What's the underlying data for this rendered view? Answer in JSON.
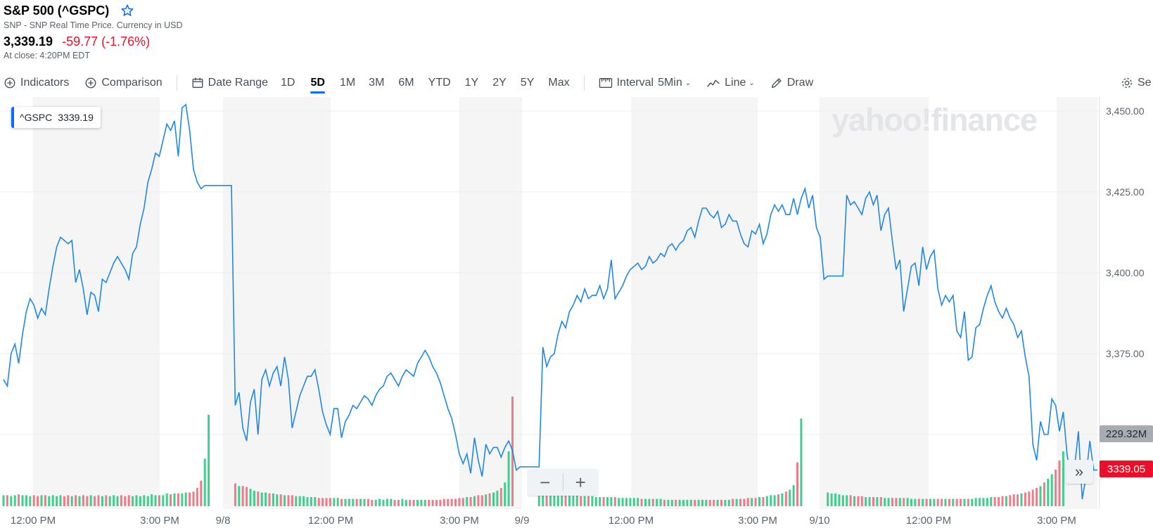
{
  "header": {
    "title": "S&P 500 (^GSPC)",
    "subtitle": "SNP - SNP Real Time Price. Currency in USD",
    "price": "3,339.19",
    "change": "-59.77 (-1.76%)",
    "close_time": "At close: 4:20PM EDT"
  },
  "toolbar": {
    "indicators": "Indicators",
    "comparison": "Comparison",
    "date_range": "Date Range",
    "ranges": [
      "1D",
      "5D",
      "1M",
      "3M",
      "6M",
      "YTD",
      "1Y",
      "2Y",
      "5Y",
      "Max"
    ],
    "active_range": "5D",
    "interval_label": "Interval",
    "interval_value": "5Min",
    "chart_type": "Line",
    "draw": "Draw",
    "settings_partial": "Se"
  },
  "legend": {
    "symbol": "^GSPC",
    "value": "3339.19"
  },
  "watermark": "yahoo!finance",
  "price_axis": [
    "3,450.00",
    "3,425.00",
    "3,400.00",
    "3,375.00"
  ],
  "volume_label": "229.32M",
  "last_price_label": "3339.05",
  "x_axis": [
    "12:00 PM",
    "3:00 PM",
    "9/8",
    "12:00 PM",
    "3:00 PM",
    "9/9",
    "12:00 PM",
    "3:00 PM",
    "9/10",
    "12:00 PM",
    "3:00 PM"
  ],
  "colors": {
    "line": "#1e88e5",
    "up_volume": "#3ecf8e",
    "down_volume": "#f07a88",
    "negative": "#eb0f29",
    "accent": "#0f69ff"
  },
  "chart_data": {
    "type": "line",
    "series": [
      {
        "name": "^GSPC",
        "values": [
          3367,
          3365,
          3375,
          3378,
          3372,
          3381,
          3388,
          3392,
          3390,
          3386,
          3389,
          3387,
          3395,
          3402,
          3408,
          3411,
          3410,
          3409,
          3410,
          3397,
          3401,
          3395,
          3387,
          3394,
          3393,
          3388,
          3398,
          3397,
          3400,
          3403,
          3405,
          3403,
          3401,
          3398,
          3406,
          3408,
          3415,
          3420,
          3428,
          3432,
          3437,
          3436,
          3441,
          3446,
          3444,
          3447,
          3436,
          3451,
          3452,
          3444,
          3432,
          3428,
          3426,
          3427,
          3427,
          3427,
          3427,
          3427,
          3427,
          3427,
          3427,
          3359,
          3363,
          3352,
          3348,
          3360,
          3364,
          3350,
          3367,
          3370,
          3365,
          3369,
          3371,
          3365,
          3374,
          3367,
          3352,
          3357,
          3362,
          3365,
          3368,
          3368,
          3370,
          3364,
          3357,
          3353,
          3350,
          3358,
          3358,
          3349,
          3354,
          3356,
          3359,
          3358,
          3360,
          3362,
          3361,
          3359,
          3362,
          3364,
          3365,
          3368,
          3369,
          3367,
          3365,
          3368,
          3370,
          3369,
          3368,
          3372,
          3374,
          3376,
          3374,
          3371,
          3369,
          3366,
          3362,
          3358,
          3355,
          3350,
          3344,
          3341,
          3344,
          3338,
          3349,
          3342,
          3337,
          3347,
          3344,
          3346,
          3346,
          3343,
          3346,
          3348,
          3345,
          3339,
          3340,
          3340,
          3340,
          3340,
          3340,
          3340,
          3377,
          3371,
          3374,
          3375,
          3381,
          3385,
          3383,
          3388,
          3390,
          3393,
          3391,
          3395,
          3392,
          3393,
          3393,
          3396,
          3392,
          3395,
          3404,
          3392,
          3394,
          3396,
          3399,
          3401,
          3402,
          3403,
          3401,
          3402,
          3405,
          3403,
          3404,
          3406,
          3405,
          3408,
          3409,
          3407,
          3409,
          3410,
          3413,
          3414,
          3411,
          3416,
          3420,
          3420,
          3418,
          3417,
          3419,
          3414,
          3415,
          3418,
          3416,
          3416,
          3412,
          3409,
          3408,
          3413,
          3412,
          3415,
          3409,
          3412,
          3418,
          3421,
          3419,
          3421,
          3418,
          3418,
          3423,
          3418,
          3423,
          3426,
          3420,
          3424,
          3414,
          3411,
          3398,
          3399,
          3399,
          3399,
          3399,
          3399,
          3424,
          3421,
          3422,
          3420,
          3418,
          3423,
          3425,
          3421,
          3424,
          3413,
          3418,
          3420,
          3410,
          3401,
          3404,
          3388,
          3395,
          3402,
          3403,
          3396,
          3408,
          3401,
          3405,
          3407,
          3395,
          3390,
          3393,
          3391,
          3393,
          3382,
          3380,
          3388,
          3373,
          3374,
          3383,
          3384,
          3389,
          3393,
          3396,
          3391,
          3388,
          3386,
          3389,
          3386,
          3384,
          3380,
          3382,
          3374,
          3368,
          3347,
          3342,
          3354,
          3350,
          3350,
          3361,
          3359,
          3351,
          3357,
          3344,
          3336,
          3340,
          3351,
          3330,
          3337,
          3348,
          3339,
          3339
        ]
      }
    ],
    "volume": [
      12,
      12,
      11,
      12,
      13,
      12,
      12,
      11,
      12,
      11,
      12,
      12,
      11,
      12,
      11,
      12,
      11,
      12,
      11,
      12,
      11,
      12,
      11,
      12,
      11,
      12,
      11,
      12,
      11,
      12,
      11,
      12,
      11,
      12,
      11,
      12,
      11,
      12,
      11,
      13,
      12,
      12,
      12,
      14,
      13,
      14,
      14,
      14,
      15,
      15,
      16,
      20,
      28,
      52,
      100,
      0,
      0,
      0,
      0,
      0,
      0,
      25,
      22,
      22,
      21,
      19,
      17,
      16,
      15,
      15,
      14,
      14,
      13,
      13,
      12,
      12,
      12,
      11,
      11,
      11,
      10,
      10,
      10,
      9,
      9,
      9,
      9,
      9,
      9,
      8,
      8,
      8,
      8,
      8,
      8,
      8,
      8,
      7,
      7,
      8,
      7,
      8,
      8,
      7,
      7,
      8,
      7,
      7,
      7,
      7,
      7,
      7,
      7,
      7,
      7,
      7,
      8,
      8,
      8,
      8,
      9,
      9,
      10,
      10,
      11,
      12,
      12,
      13,
      14,
      15,
      17,
      20,
      26,
      60,
      120,
      0,
      0,
      0,
      0,
      0,
      0,
      19,
      17,
      16,
      15,
      14,
      14,
      13,
      13,
      12,
      12,
      12,
      11,
      11,
      11,
      11,
      10,
      10,
      10,
      10,
      10,
      10,
      9,
      9,
      9,
      9,
      9,
      9,
      8,
      8,
      8,
      8,
      8,
      8,
      7,
      7,
      7,
      7,
      7,
      7,
      7,
      7,
      7,
      7,
      7,
      7,
      7,
      7,
      7,
      7,
      7,
      7,
      8,
      8,
      8,
      8,
      9,
      9,
      9,
      10,
      10,
      11,
      12,
      12,
      13,
      14,
      16,
      18,
      23,
      48,
      96,
      0,
      0,
      0,
      0,
      0,
      0,
      15,
      14,
      14,
      13,
      12,
      12,
      12,
      11,
      11,
      11,
      10,
      10,
      10,
      10,
      10,
      9,
      9,
      9,
      9,
      9,
      9,
      9,
      8,
      8,
      8,
      8,
      8,
      8,
      8,
      8,
      8,
      8,
      8,
      8,
      8,
      8,
      8,
      8,
      8,
      9,
      9,
      9,
      9,
      10,
      10,
      10,
      11,
      11,
      12,
      13,
      13,
      14,
      15,
      16,
      18,
      20,
      22,
      26,
      30,
      35,
      40,
      50,
      60
    ]
  }
}
